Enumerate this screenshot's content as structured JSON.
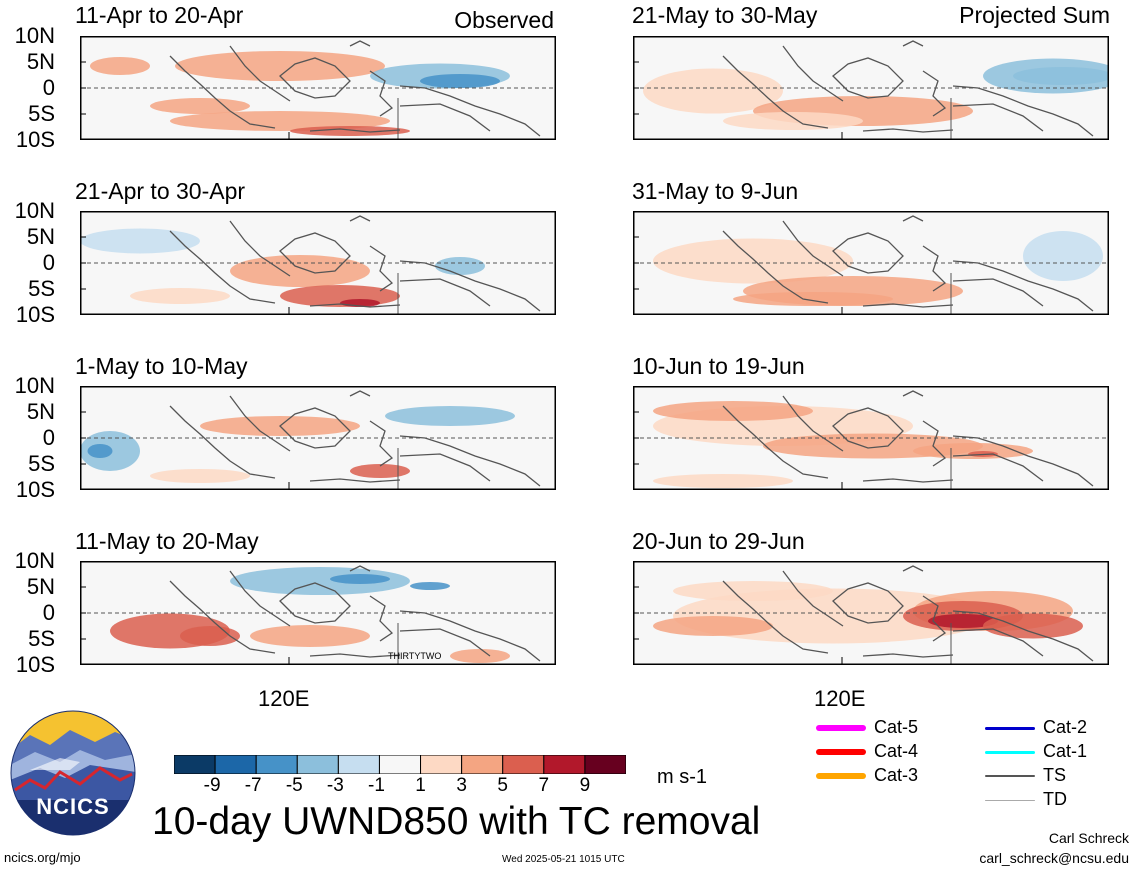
{
  "chart_data": {
    "type": "heatmap",
    "title": "10-day UWND850 with TC removal",
    "variable": "UWND850",
    "units": "m s-1",
    "y_ticks": [
      "10N",
      "5N",
      "0",
      "5S",
      "10S"
    ],
    "x_ticks": [
      "120E"
    ],
    "colorbar": {
      "ticks": [
        "-9",
        "-7",
        "-5",
        "-3",
        "-1",
        "1",
        "3",
        "5",
        "7",
        "9"
      ],
      "colors": [
        "#0b3a66",
        "#1c67a8",
        "#4692c8",
        "#8cbfdc",
        "#c6def0",
        "#f7f7f7",
        "#fdd9c4",
        "#f4a582",
        "#db5f4f",
        "#b2182b",
        "#67001f"
      ]
    },
    "panels": [
      {
        "label": "11-Apr to 20-Apr",
        "tag": "Observed",
        "column": "left"
      },
      {
        "label": "21-Apr to 30-Apr",
        "tag": "",
        "column": "left"
      },
      {
        "label": "1-May to 10-May",
        "tag": "",
        "column": "left"
      },
      {
        "label": "11-May to 20-May",
        "tag": "",
        "column": "left",
        "annotation": "THIRTYTWO"
      },
      {
        "label": "21-May to 30-May",
        "tag": "Projected Sum",
        "column": "right"
      },
      {
        "label": "31-May to 9-Jun",
        "tag": "",
        "column": "right"
      },
      {
        "label": "10-Jun to 19-Jun",
        "tag": "",
        "column": "right"
      },
      {
        "label": "20-Jun to 29-Jun",
        "tag": "",
        "column": "right"
      }
    ],
    "grid": false
  },
  "legend": {
    "items": [
      {
        "label": "Cat-5",
        "color": "#ff00ff"
      },
      {
        "label": "Cat-4",
        "color": "#ff0000"
      },
      {
        "label": "Cat-3",
        "color": "#ffa500"
      },
      {
        "label": "Cat-2",
        "color": "#0000cc"
      },
      {
        "label": "Cat-1",
        "color": "#00ffff"
      },
      {
        "label": "TS",
        "color": "#555555"
      },
      {
        "label": "TD",
        "color": "#aaaaaa"
      }
    ]
  },
  "logo": {
    "text": "NCICS"
  },
  "footer": {
    "url": "ncics.org/mjo",
    "timestamp": "Wed 2025-05-21 1015 UTC",
    "author": "Carl Schreck",
    "email": "carl_schreck@ncsu.edu"
  }
}
